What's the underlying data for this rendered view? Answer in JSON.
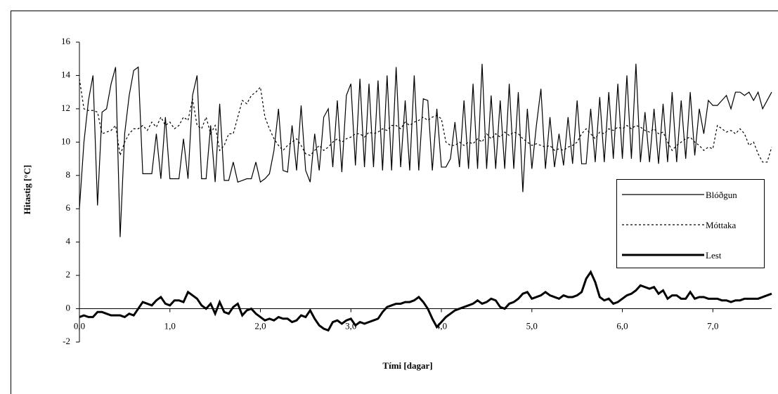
{
  "chart_data": {
    "type": "line",
    "xlabel": "Tími [dagar]",
    "ylabel": "Hitastig [°C]",
    "x": [
      0,
      0.05,
      0.1,
      0.15,
      0.2,
      0.25,
      0.3,
      0.35,
      0.4,
      0.45,
      0.5,
      0.55,
      0.6,
      0.65,
      0.7,
      0.75,
      0.8,
      0.85,
      0.9,
      0.95,
      1,
      1.05,
      1.1,
      1.15,
      1.2,
      1.25,
      1.3,
      1.35,
      1.4,
      1.45,
      1.5,
      1.55,
      1.6,
      1.65,
      1.7,
      1.75,
      1.8,
      1.85,
      1.9,
      1.95,
      2,
      2.05,
      2.1,
      2.15,
      2.2,
      2.25,
      2.3,
      2.35,
      2.4,
      2.45,
      2.5,
      2.55,
      2.6,
      2.65,
      2.7,
      2.75,
      2.8,
      2.85,
      2.9,
      2.95,
      3,
      3.05,
      3.1,
      3.15,
      3.2,
      3.25,
      3.3,
      3.35,
      3.4,
      3.45,
      3.5,
      3.55,
      3.6,
      3.65,
      3.7,
      3.75,
      3.8,
      3.85,
      3.9,
      3.95,
      4,
      4.05,
      4.1,
      4.15,
      4.2,
      4.25,
      4.3,
      4.35,
      4.4,
      4.45,
      4.5,
      4.55,
      4.6,
      4.65,
      4.7,
      4.75,
      4.8,
      4.85,
      4.9,
      4.95,
      5,
      5.05,
      5.1,
      5.15,
      5.2,
      5.25,
      5.3,
      5.35,
      5.4,
      5.45,
      5.5,
      5.55,
      5.6,
      5.65,
      5.7,
      5.75,
      5.8,
      5.85,
      5.9,
      5.95,
      6,
      6.05,
      6.1,
      6.15,
      6.2,
      6.25,
      6.3,
      6.35,
      6.4,
      6.45,
      6.5,
      6.55,
      6.6,
      6.65,
      6.7,
      6.75,
      6.8,
      6.85,
      6.9,
      6.95,
      7,
      7.05,
      7.1,
      7.15,
      7.2,
      7.25,
      7.3,
      7.35,
      7.4,
      7.45,
      7.5,
      7.55,
      7.6,
      7.65
    ],
    "series": [
      {
        "name": "Blóðgun",
        "color": "#000000",
        "line_width": 1.2,
        "dashed": false,
        "values": [
          6.0,
          10.0,
          12.5,
          14.0,
          6.2,
          11.8,
          12.0,
          13.5,
          14.5,
          4.3,
          10.5,
          12.8,
          14.3,
          14.5,
          8.1,
          8.1,
          8.1,
          10.5,
          7.8,
          11.5,
          7.8,
          7.8,
          7.8,
          10.2,
          7.8,
          12.8,
          14.0,
          7.8,
          7.8,
          11.0,
          7.6,
          12.3,
          7.7,
          7.7,
          8.8,
          7.6,
          7.7,
          7.8,
          7.8,
          8.8,
          7.6,
          7.8,
          8.1,
          9.5,
          12.0,
          8.3,
          8.2,
          11.0,
          8.3,
          12.2,
          8.3,
          7.6,
          10.5,
          8.3,
          11.5,
          12.0,
          8.5,
          12.5,
          8.2,
          12.8,
          13.5,
          8.6,
          13.8,
          8.5,
          13.5,
          8.5,
          13.7,
          8.3,
          14.0,
          8.3,
          14.5,
          8.5,
          12.5,
          8.3,
          14.0,
          8.3,
          12.6,
          12.5,
          8.3,
          12.0,
          8.5,
          8.5,
          9.0,
          11.2,
          8.5,
          12.5,
          8.4,
          13.5,
          8.4,
          14.7,
          8.4,
          12.8,
          8.4,
          12.5,
          8.4,
          13.5,
          8.4,
          13.0,
          7.0,
          12.0,
          8.4,
          11.0,
          13.2,
          8.4,
          11.5,
          8.5,
          10.5,
          8.6,
          11.5,
          8.7,
          12.5,
          8.7,
          8.7,
          12.0,
          8.8,
          12.7,
          8.8,
          13.0,
          9.0,
          13.5,
          9.0,
          14.0,
          9.0,
          14.7,
          8.8,
          11.8,
          8.8,
          12.0,
          8.7,
          12.3,
          8.8,
          13.0,
          8.8,
          12.5,
          9.0,
          13.0,
          9.2,
          12.0,
          10.5,
          12.5,
          12.2,
          12.2,
          12.5,
          12.8,
          12.0,
          13.0,
          13.0,
          12.8,
          13.0,
          12.5,
          13.0,
          12.0,
          12.5,
          13.0
        ]
      },
      {
        "name": "Móttaka",
        "color": "#000000",
        "line_width": 1.2,
        "dashed": true,
        "values": [
          13.8,
          12.0,
          11.9,
          11.9,
          11.8,
          10.5,
          10.6,
          10.7,
          11.0,
          9.2,
          10.0,
          10.5,
          10.8,
          10.8,
          11.0,
          10.7,
          11.2,
          10.9,
          11.5,
          11.0,
          11.2,
          10.8,
          11.0,
          11.5,
          11.3,
          12.6,
          11.0,
          10.8,
          11.5,
          10.5,
          11.0,
          9.5,
          9.8,
          10.5,
          10.5,
          11.5,
          12.5,
          12.3,
          12.8,
          13.0,
          13.3,
          11.5,
          10.8,
          10.2,
          9.8,
          9.5,
          9.8,
          10.0,
          10.2,
          9.8,
          9.3,
          9.2,
          9.5,
          9.8,
          9.5,
          9.7,
          10.0,
          10.2,
          10.0,
          10.2,
          10.3,
          10.5,
          10.5,
          10.3,
          10.6,
          10.5,
          10.6,
          10.8,
          10.7,
          11.0,
          11.0,
          10.8,
          11.2,
          11.0,
          11.2,
          11.3,
          11.5,
          11.3,
          11.5,
          11.6,
          11.4,
          10.0,
          9.8,
          9.8,
          10.0,
          9.8,
          10.0,
          9.9,
          10.2,
          10.0,
          10.5,
          10.2,
          10.5,
          10.3,
          10.6,
          10.4,
          10.6,
          10.5,
          10.2,
          10.0,
          9.8,
          9.9,
          9.8,
          9.7,
          9.8,
          9.5,
          9.6,
          9.5,
          9.7,
          9.8,
          10.0,
          10.5,
          10.8,
          10.5,
          10.2,
          10.6,
          10.5,
          10.8,
          10.7,
          10.9,
          10.8,
          11.0,
          10.8,
          11.0,
          10.9,
          10.7,
          10.6,
          10.8,
          10.5,
          10.6,
          10.0,
          9.5,
          9.8,
          10.0,
          10.2,
          10.3,
          10.0,
          9.8,
          9.5,
          9.7,
          9.6,
          11.0,
          10.8,
          10.6,
          10.7,
          10.5,
          10.8,
          10.5,
          9.8,
          10.0,
          9.3,
          8.8,
          8.8,
          9.7
        ]
      },
      {
        "name": "Lest",
        "color": "#000000",
        "line_width": 3,
        "dashed": false,
        "values": [
          -0.5,
          -0.4,
          -0.5,
          -0.5,
          -0.2,
          -0.2,
          -0.3,
          -0.4,
          -0.4,
          -0.4,
          -0.5,
          -0.3,
          -0.4,
          0.0,
          0.4,
          0.3,
          0.2,
          0.5,
          0.7,
          0.3,
          0.2,
          0.5,
          0.5,
          0.4,
          1.0,
          0.8,
          0.6,
          0.2,
          0.0,
          0.3,
          -0.3,
          0.4,
          -0.2,
          -0.3,
          0.1,
          0.3,
          -0.4,
          -0.1,
          0.0,
          -0.3,
          -0.5,
          -0.7,
          -0.6,
          -0.7,
          -0.5,
          -0.6,
          -0.6,
          -0.8,
          -0.7,
          -0.4,
          -0.5,
          -0.1,
          -0.6,
          -1.0,
          -1.2,
          -1.3,
          -0.8,
          -0.7,
          -0.9,
          -0.7,
          -0.6,
          -1.0,
          -0.8,
          -0.9,
          -0.8,
          -0.7,
          -0.6,
          -0.2,
          0.1,
          0.2,
          0.3,
          0.3,
          0.4,
          0.4,
          0.5,
          0.7,
          0.4,
          0.0,
          -0.6,
          -1.1,
          -0.8,
          -0.5,
          -0.3,
          -0.1,
          0.0,
          0.1,
          0.2,
          0.3,
          0.5,
          0.3,
          0.4,
          0.6,
          0.5,
          0.1,
          0.0,
          0.3,
          0.4,
          0.6,
          0.9,
          1.0,
          0.6,
          0.7,
          0.8,
          1.0,
          0.8,
          0.7,
          0.6,
          0.8,
          0.7,
          0.7,
          0.8,
          1.0,
          1.8,
          2.2,
          1.6,
          0.7,
          0.5,
          0.6,
          0.3,
          0.4,
          0.6,
          0.8,
          0.9,
          1.1,
          1.4,
          1.3,
          1.2,
          1.3,
          0.9,
          1.1,
          0.6,
          0.8,
          0.8,
          0.6,
          0.6,
          1.0,
          0.6,
          0.7,
          0.7,
          0.6,
          0.6,
          0.6,
          0.5,
          0.5,
          0.4,
          0.5,
          0.5,
          0.6,
          0.6,
          0.6,
          0.6,
          0.7,
          0.8,
          0.9
        ]
      }
    ],
    "xlim": [
      0,
      7.65
    ],
    "xticks": [
      {
        "value": 0,
        "label": "0,0"
      },
      {
        "value": 1,
        "label": "1,0"
      },
      {
        "value": 2,
        "label": "2,0"
      },
      {
        "value": 3,
        "label": "3,0"
      },
      {
        "value": 4,
        "label": "4,0"
      },
      {
        "value": 5,
        "label": "5,0"
      },
      {
        "value": 6,
        "label": "6,0"
      },
      {
        "value": 7,
        "label": "7,0"
      }
    ],
    "ylim": [
      -2,
      16
    ],
    "yticks": [
      -2,
      0,
      2,
      4,
      6,
      8,
      10,
      12,
      14,
      16
    ],
    "grid": false,
    "legend": "right"
  }
}
